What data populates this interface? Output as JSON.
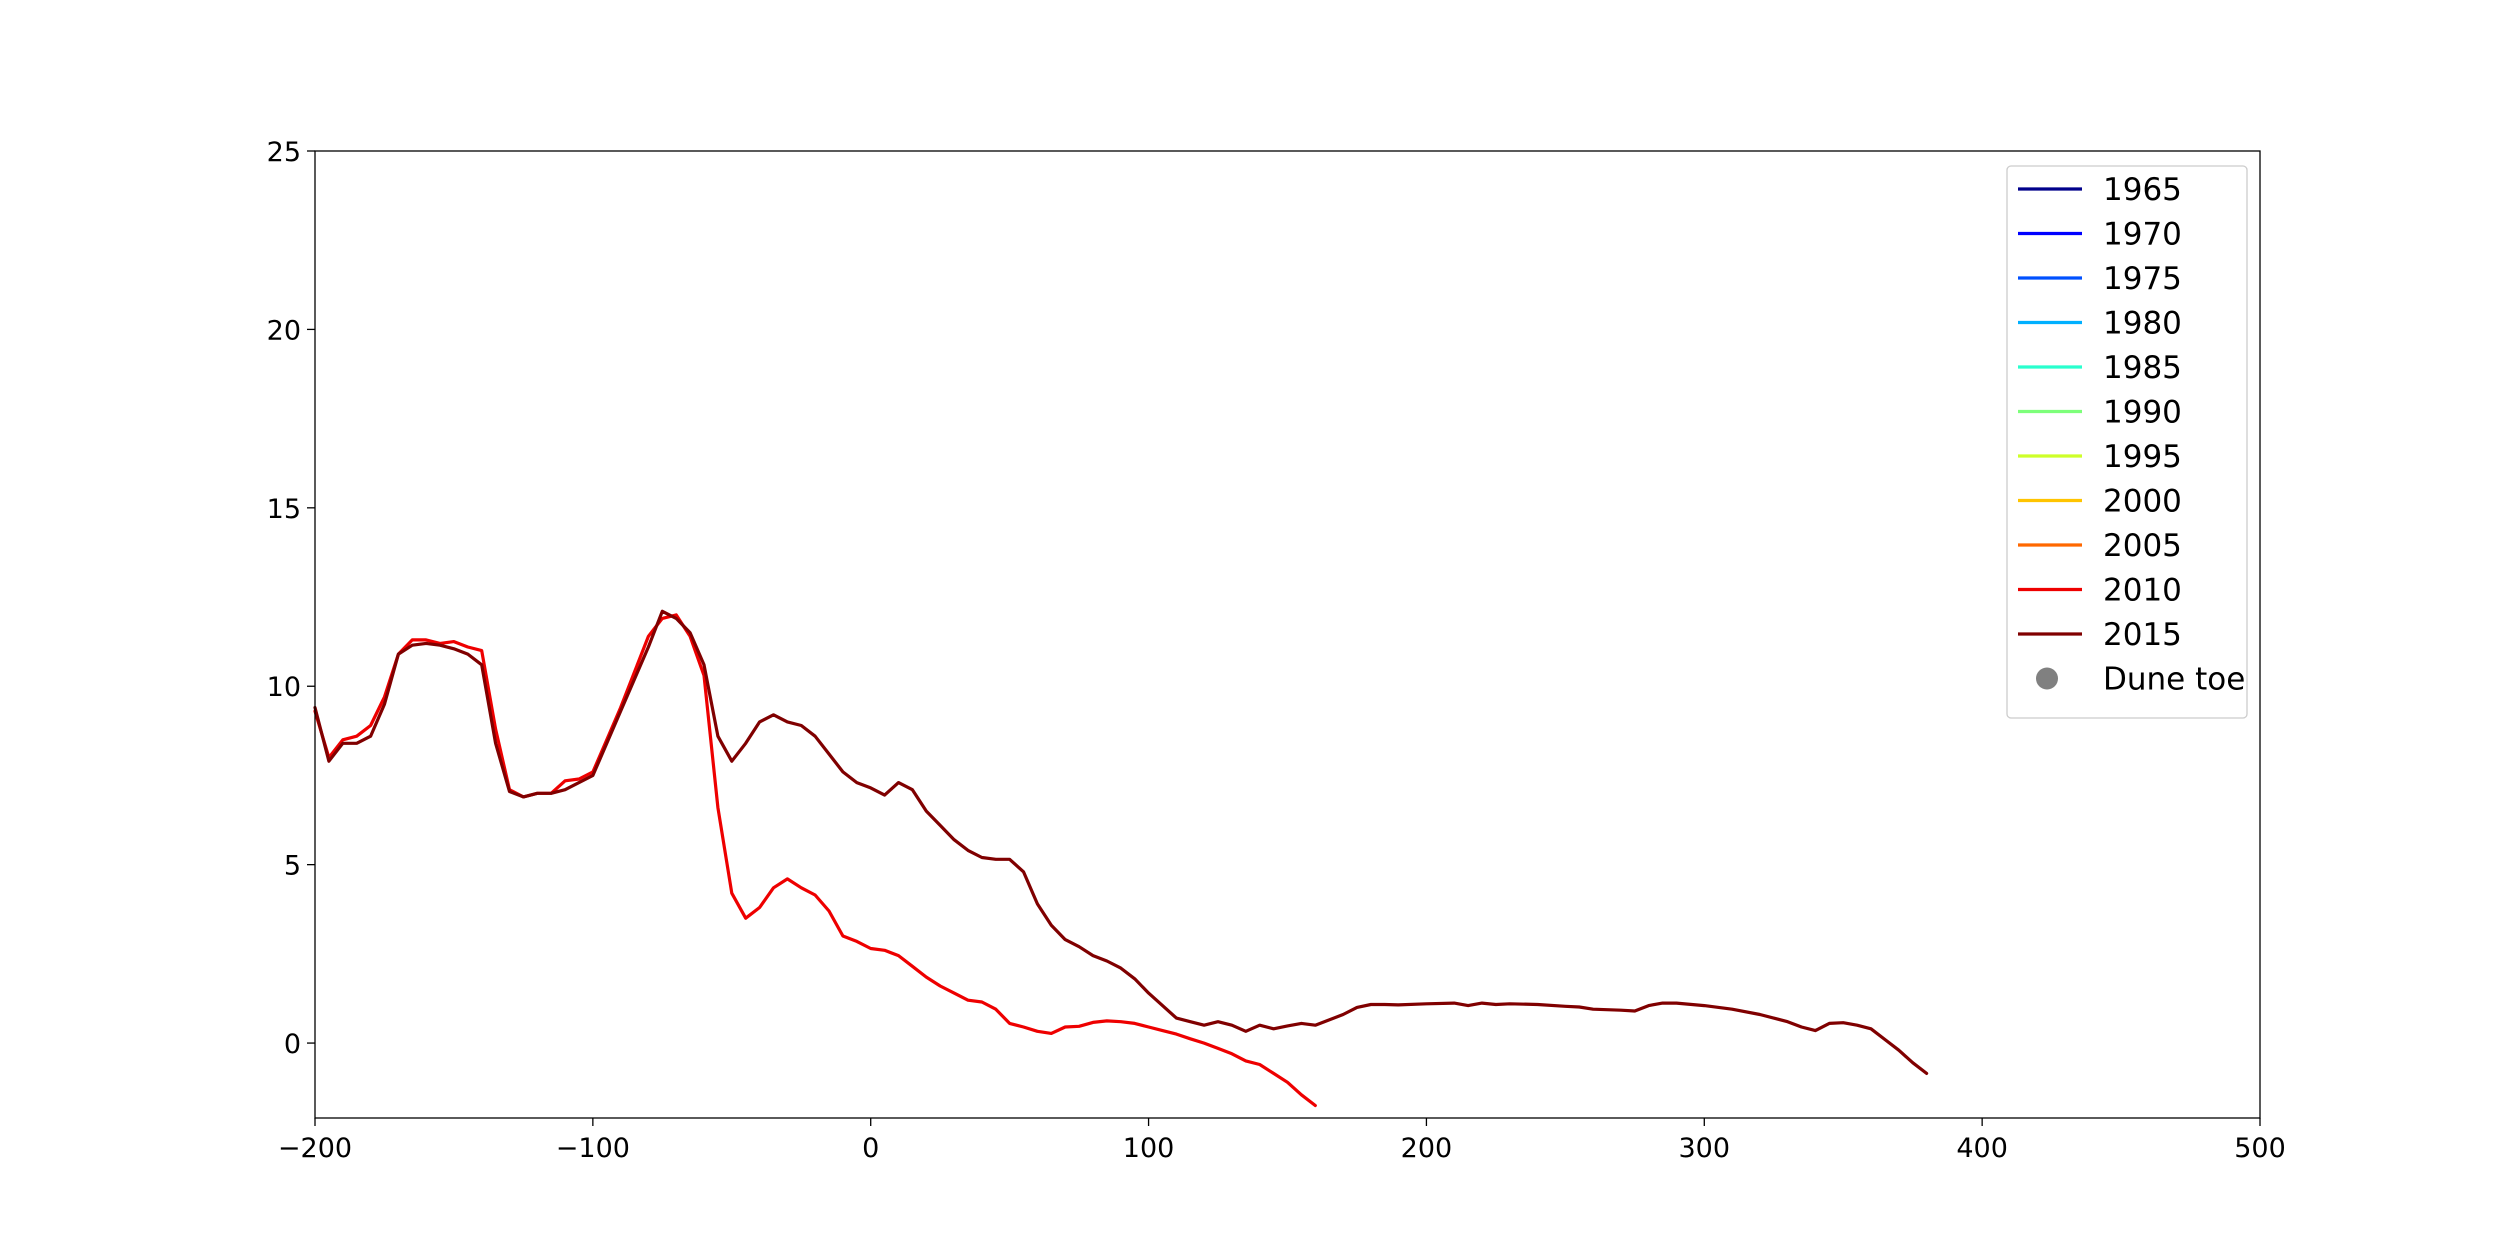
{
  "chart_data": {
    "type": "line",
    "title": "",
    "xlabel": "",
    "ylabel": "",
    "xlim": [
      -200,
      500
    ],
    "ylim": [
      -2.1,
      25
    ],
    "xticks": [
      -200,
      -100,
      0,
      100,
      200,
      300,
      400,
      500
    ],
    "yticks": [
      0,
      5,
      10,
      15,
      20,
      25
    ],
    "xtick_labels": [
      "−200",
      "−100",
      "0",
      "100",
      "200",
      "300",
      "400",
      "500"
    ],
    "ytick_labels": [
      "0",
      "5",
      "10",
      "15",
      "20",
      "25"
    ],
    "grid": false,
    "legend": {
      "placement": "top-right",
      "entries": [
        {
          "label": "1965",
          "color": "#00008b",
          "kind": "line"
        },
        {
          "label": "1970",
          "color": "#0000ff",
          "kind": "line"
        },
        {
          "label": "1975",
          "color": "#0050ff",
          "kind": "line"
        },
        {
          "label": "1980",
          "color": "#00b0ff",
          "kind": "line"
        },
        {
          "label": "1985",
          "color": "#29ffce",
          "kind": "line"
        },
        {
          "label": "1990",
          "color": "#7dff7a",
          "kind": "line"
        },
        {
          "label": "1995",
          "color": "#ceff29",
          "kind": "line"
        },
        {
          "label": "2000",
          "color": "#ffc400",
          "kind": "line"
        },
        {
          "label": "2005",
          "color": "#ff6800",
          "kind": "line"
        },
        {
          "label": "2010",
          "color": "#ee0000",
          "kind": "line"
        },
        {
          "label": "2015",
          "color": "#800000",
          "kind": "line"
        },
        {
          "label": "Dune toe",
          "color": "#808080",
          "kind": "marker"
        }
      ]
    },
    "series": [
      {
        "name": "2010",
        "color": "#ee0000",
        "x": [
          -200,
          -195,
          -190,
          -185,
          -180,
          -175,
          -170,
          -165,
          -160,
          -155,
          -150,
          -145,
          -140,
          -135,
          -130,
          -125,
          -120,
          -115,
          -110,
          -105,
          -100,
          -95,
          -90,
          -85,
          -80,
          -75,
          -70,
          -65,
          -60,
          -55,
          -50,
          -45,
          -40,
          -35,
          -30,
          -25,
          -20,
          -15,
          -10,
          -5,
          0,
          5,
          10,
          15,
          20,
          25,
          30,
          35,
          40,
          45,
          50,
          55,
          60,
          65,
          70,
          75,
          80,
          85,
          90,
          95,
          100,
          105,
          110,
          115,
          120,
          125,
          130,
          135,
          140,
          145,
          150,
          155,
          160
        ],
        "y": [
          9.3,
          8.0,
          8.5,
          8.6,
          8.9,
          9.7,
          10.9,
          11.3,
          11.3,
          11.2,
          11.25,
          11.1,
          11.0,
          8.8,
          7.1,
          6.9,
          7.0,
          7.0,
          7.35,
          7.4,
          7.6,
          8.5,
          9.4,
          10.4,
          11.4,
          11.9,
          12.0,
          11.4,
          10.3,
          6.6,
          4.2,
          3.5,
          3.8,
          4.35,
          4.6,
          4.35,
          4.15,
          3.7,
          3.0,
          2.85,
          2.65,
          2.6,
          2.45,
          2.15,
          1.85,
          1.6,
          1.4,
          1.2,
          1.15,
          0.95,
          0.55,
          0.45,
          0.33,
          0.27,
          0.45,
          0.47,
          0.58,
          0.62,
          0.6,
          0.55,
          0.45,
          0.35,
          0.25,
          0.12,
          0.0,
          -0.15,
          -0.3,
          -0.5,
          -0.6,
          -0.85,
          -1.1,
          -1.45,
          -1.75
        ]
      },
      {
        "name": "2015",
        "color": "#800000",
        "x": [
          -200,
          -195,
          -190,
          -185,
          -180,
          -175,
          -170,
          -165,
          -160,
          -155,
          -150,
          -145,
          -140,
          -135,
          -130,
          -125,
          -120,
          -115,
          -110,
          -105,
          -100,
          -95,
          -90,
          -85,
          -80,
          -75,
          -70,
          -65,
          -60,
          -55,
          -50,
          -45,
          -40,
          -35,
          -30,
          -25,
          -20,
          -15,
          -10,
          -5,
          0,
          5,
          10,
          15,
          20,
          25,
          30,
          35,
          40,
          45,
          50,
          55,
          60,
          65,
          70,
          75,
          80,
          85,
          90,
          95,
          100,
          105,
          110,
          115,
          120,
          125,
          130,
          135,
          140,
          145,
          150,
          155,
          160,
          165,
          170,
          175,
          180,
          185,
          190,
          200,
          210,
          215,
          220,
          225,
          230,
          240,
          250,
          255,
          260,
          270,
          275,
          280,
          285,
          290,
          300,
          310,
          320,
          330,
          335,
          340,
          345,
          350,
          355,
          360,
          365,
          370,
          375,
          380
        ],
        "y": [
          9.4,
          7.9,
          8.4,
          8.4,
          8.6,
          9.5,
          10.9,
          11.15,
          11.2,
          11.15,
          11.05,
          10.9,
          10.6,
          8.4,
          7.05,
          6.9,
          7.0,
          7.0,
          7.1,
          7.3,
          7.5,
          8.4,
          9.3,
          10.2,
          11.1,
          12.1,
          11.9,
          11.5,
          10.6,
          8.6,
          7.9,
          8.4,
          9.0,
          9.2,
          9.0,
          8.9,
          8.6,
          8.1,
          7.6,
          7.3,
          7.15,
          6.95,
          7.3,
          7.1,
          6.5,
          6.1,
          5.7,
          5.4,
          5.2,
          5.15,
          5.15,
          4.8,
          3.9,
          3.3,
          2.9,
          2.7,
          2.45,
          2.3,
          2.1,
          1.8,
          1.4,
          1.05,
          0.7,
          0.6,
          0.5,
          0.6,
          0.5,
          0.33,
          0.5,
          0.4,
          0.48,
          0.55,
          0.5,
          0.65,
          0.8,
          1.0,
          1.08,
          1.08,
          1.07,
          1.1,
          1.12,
          1.05,
          1.12,
          1.08,
          1.1,
          1.08,
          1.03,
          1.01,
          0.95,
          0.92,
          0.9,
          1.05,
          1.12,
          1.12,
          1.05,
          0.95,
          0.8,
          0.6,
          0.45,
          0.35,
          0.55,
          0.57,
          0.5,
          0.4,
          0.1,
          -0.2,
          -0.55,
          -0.85
        ]
      }
    ]
  }
}
